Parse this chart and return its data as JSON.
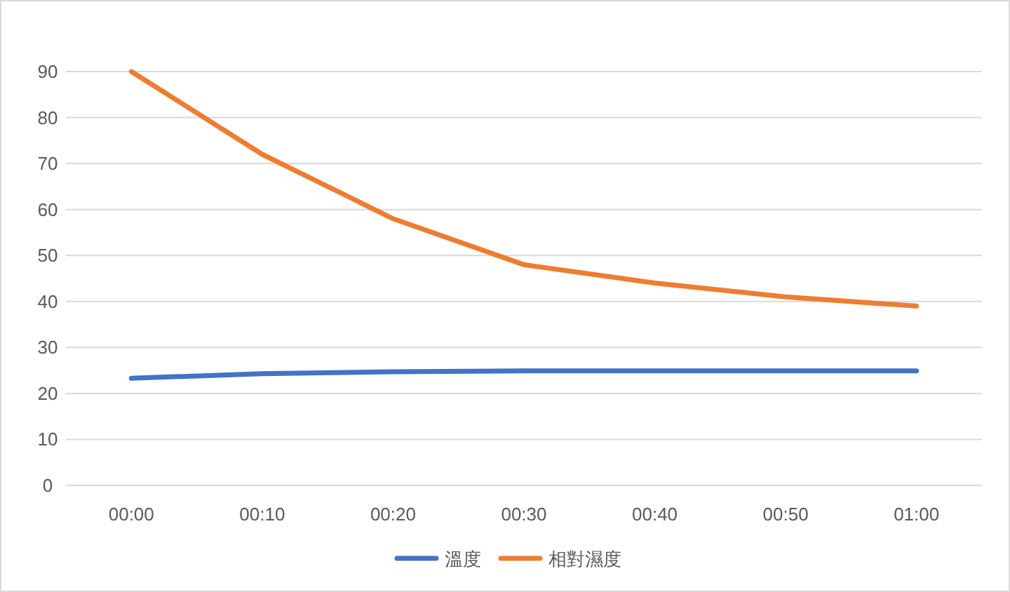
{
  "chart_data": {
    "type": "line",
    "categories": [
      "00:00",
      "00:10",
      "00:20",
      "00:30",
      "00:40",
      "00:50",
      "01:00"
    ],
    "series": [
      {
        "name": "溫度",
        "color": "#4472c4",
        "values": [
          23.3,
          24.3,
          24.7,
          24.9,
          24.9,
          24.9,
          24.9
        ]
      },
      {
        "name": "相對濕度",
        "color": "#ed7d31",
        "values": [
          90,
          72,
          58,
          48,
          44,
          41,
          39
        ]
      }
    ],
    "ylim": [
      0,
      90
    ],
    "yticks": [
      0,
      10,
      20,
      30,
      40,
      50,
      60,
      70,
      80,
      90
    ],
    "grid": "y",
    "legend": "bottom",
    "marker": "none",
    "line_style": "solid"
  }
}
